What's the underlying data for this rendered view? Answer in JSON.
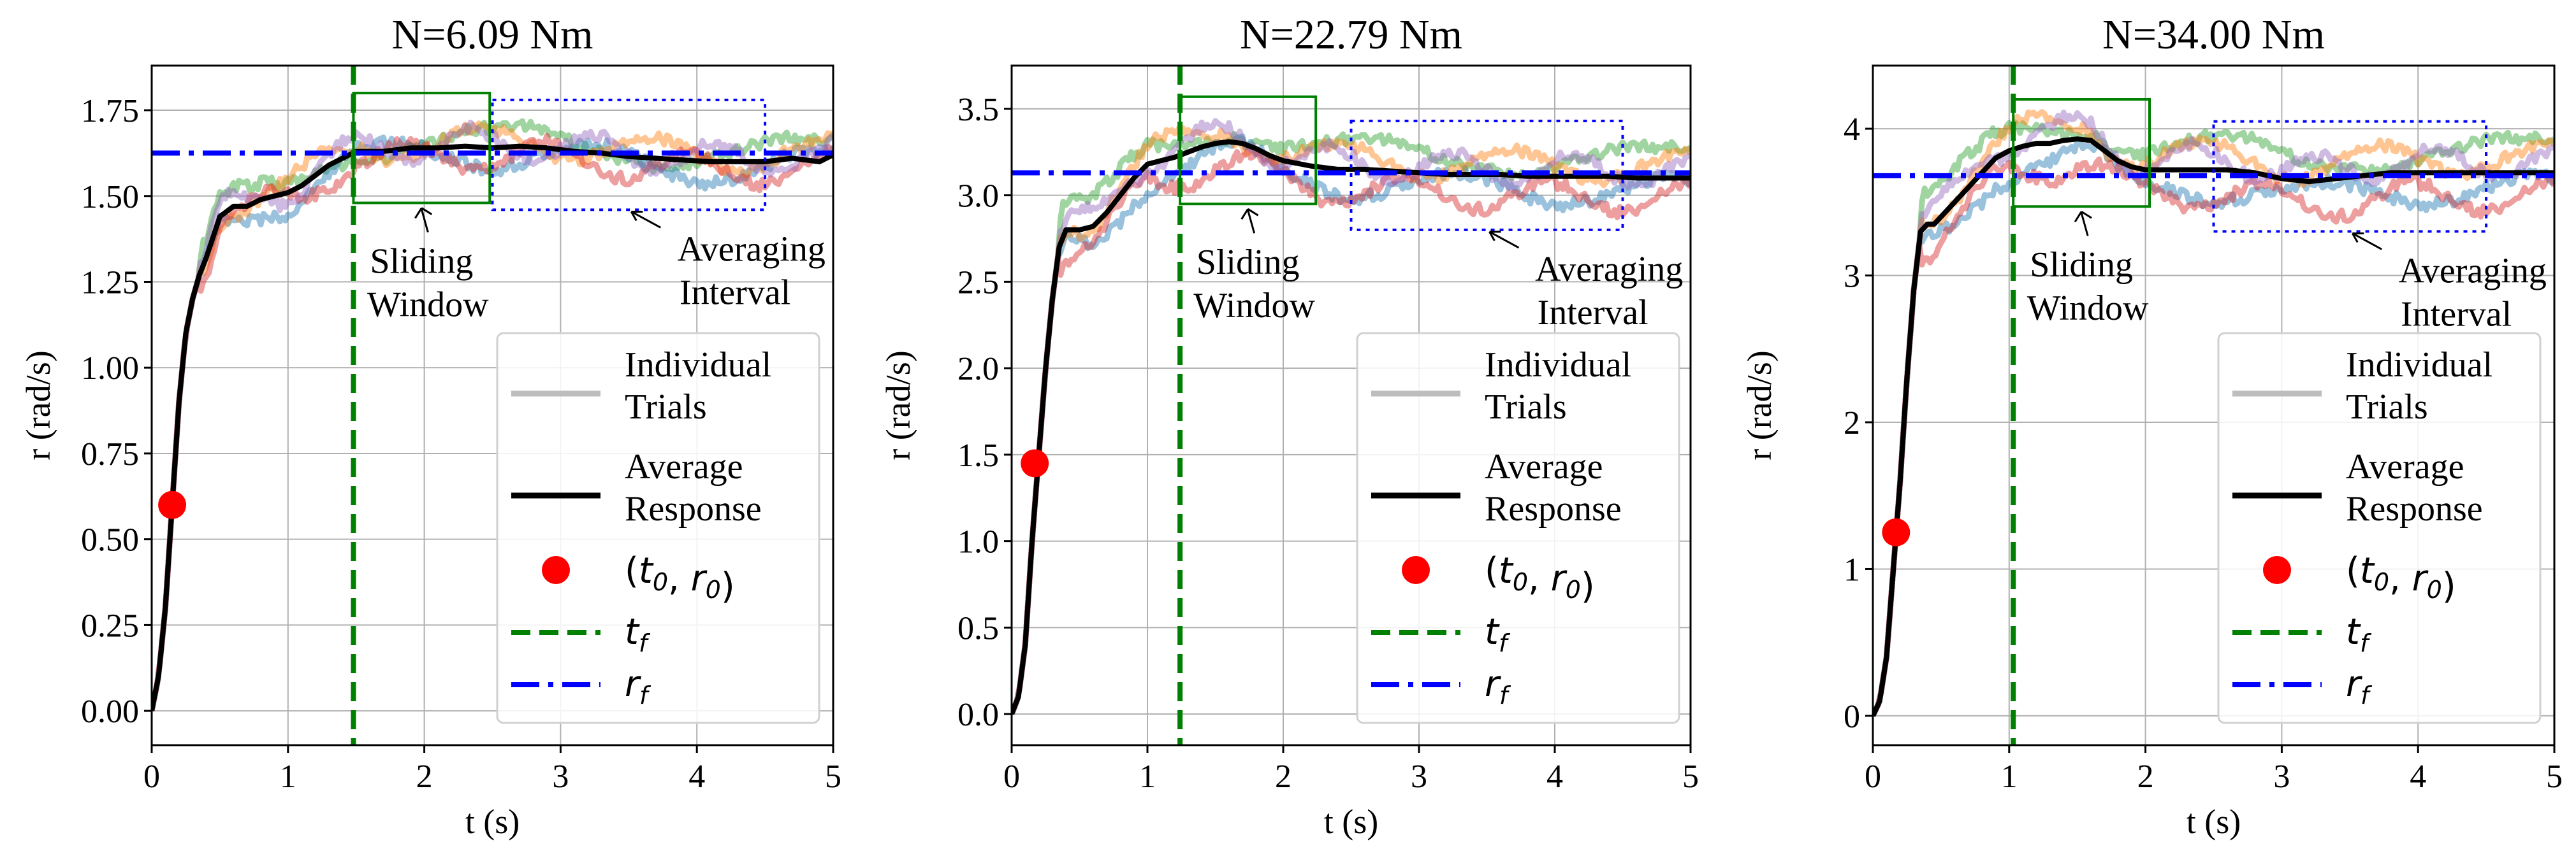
{
  "figure": {
    "colors": {
      "average": "#000000",
      "marker": "#ff0000",
      "tf": "#008000",
      "rf": "#0000ff",
      "grid": "#b0b0b0",
      "trials": [
        "#2ca02c",
        "#1f77b4",
        "#ff7f0e",
        "#d62728",
        "#9467bd"
      ]
    }
  },
  "chart_data": [
    {
      "type": "line",
      "title": "N=6.09 Nm",
      "xlabel": "t (s)",
      "ylabel": "r (rad/s)",
      "xlim": [
        0,
        5
      ],
      "ylim": [
        -0.1,
        1.88
      ],
      "xticks": [
        "0",
        "1",
        "2",
        "3",
        "4",
        "5"
      ],
      "yticks": [
        "0.00",
        "0.25",
        "0.50",
        "0.75",
        "1.00",
        "1.25",
        "1.50",
        "1.75"
      ],
      "ytick_values": [
        0,
        0.25,
        0.5,
        0.75,
        1.0,
        1.25,
        1.5,
        1.75
      ],
      "average": [
        [
          0,
          0
        ],
        [
          0.05,
          0.1
        ],
        [
          0.1,
          0.3
        ],
        [
          0.15,
          0.6
        ],
        [
          0.2,
          0.9
        ],
        [
          0.25,
          1.1
        ],
        [
          0.3,
          1.2
        ],
        [
          0.35,
          1.27
        ],
        [
          0.4,
          1.32
        ],
        [
          0.45,
          1.38
        ],
        [
          0.5,
          1.44
        ],
        [
          0.6,
          1.47
        ],
        [
          0.7,
          1.47
        ],
        [
          0.8,
          1.49
        ],
        [
          0.9,
          1.5
        ],
        [
          1.0,
          1.51
        ],
        [
          1.1,
          1.53
        ],
        [
          1.2,
          1.56
        ],
        [
          1.3,
          1.59
        ],
        [
          1.4,
          1.61
        ],
        [
          1.5,
          1.63
        ],
        [
          1.7,
          1.63
        ],
        [
          1.9,
          1.64
        ],
        [
          2.1,
          1.64
        ],
        [
          2.3,
          1.645
        ],
        [
          2.5,
          1.64
        ],
        [
          2.7,
          1.645
        ],
        [
          2.9,
          1.64
        ],
        [
          3.1,
          1.63
        ],
        [
          3.3,
          1.625
        ],
        [
          3.5,
          1.615
        ],
        [
          3.7,
          1.61
        ],
        [
          3.9,
          1.605
        ],
        [
          4.1,
          1.6
        ],
        [
          4.3,
          1.6
        ],
        [
          4.5,
          1.6
        ],
        [
          4.7,
          1.61
        ],
        [
          4.9,
          1.6
        ],
        [
          5.0,
          1.62
        ]
      ],
      "trial_offsets": [
        0.02,
        -0.02,
        0.015,
        -0.025,
        0.01
      ],
      "marker": {
        "t": 0.15,
        "r": 0.6
      },
      "tf": 1.48,
      "rf": 1.625,
      "sliding_window": {
        "t0": 1.48,
        "t1": 2.48,
        "r0": 1.48,
        "r1": 1.8
      },
      "averaging_interval": {
        "t0": 2.5,
        "t1": 4.5,
        "r0": 1.46,
        "r1": 1.78
      },
      "annotations": {
        "sliding": [
          "Sliding",
          "Window"
        ],
        "averaging": [
          "Averaging",
          "Interval"
        ]
      },
      "legend": {
        "position": "lower-right",
        "individual": [
          "Individual",
          "Trials"
        ],
        "average": [
          "Average",
          "Response"
        ],
        "marker": "(t0, r0)",
        "tf": "tf",
        "rf": "rf"
      }
    },
    {
      "type": "line",
      "title": "N=22.79 Nm",
      "xlabel": "t (s)",
      "ylabel": "r (rad/s)",
      "xlim": [
        0,
        5
      ],
      "ylim": [
        -0.18,
        3.75
      ],
      "xticks": [
        "0",
        "1",
        "2",
        "3",
        "4",
        "5"
      ],
      "yticks": [
        "0.0",
        "0.5",
        "1.0",
        "1.5",
        "2.0",
        "2.5",
        "3.0",
        "3.5"
      ],
      "ytick_values": [
        0,
        0.5,
        1.0,
        1.5,
        2.0,
        2.5,
        3.0,
        3.5
      ],
      "average": [
        [
          0,
          0
        ],
        [
          0.05,
          0.1
        ],
        [
          0.1,
          0.4
        ],
        [
          0.15,
          1.0
        ],
        [
          0.2,
          1.5
        ],
        [
          0.25,
          2.0
        ],
        [
          0.3,
          2.4
        ],
        [
          0.35,
          2.7
        ],
        [
          0.4,
          2.8
        ],
        [
          0.5,
          2.8
        ],
        [
          0.6,
          2.82
        ],
        [
          0.7,
          2.9
        ],
        [
          0.8,
          3.0
        ],
        [
          0.9,
          3.1
        ],
        [
          1.0,
          3.18
        ],
        [
          1.1,
          3.2
        ],
        [
          1.2,
          3.22
        ],
        [
          1.3,
          3.25
        ],
        [
          1.4,
          3.28
        ],
        [
          1.5,
          3.3
        ],
        [
          1.6,
          3.31
        ],
        [
          1.7,
          3.3
        ],
        [
          1.8,
          3.27
        ],
        [
          1.9,
          3.23
        ],
        [
          2.0,
          3.2
        ],
        [
          2.2,
          3.17
        ],
        [
          2.4,
          3.15
        ],
        [
          2.6,
          3.15
        ],
        [
          2.8,
          3.14
        ],
        [
          3.0,
          3.13
        ],
        [
          3.2,
          3.12
        ],
        [
          3.4,
          3.12
        ],
        [
          3.6,
          3.12
        ],
        [
          3.8,
          3.11
        ],
        [
          4.0,
          3.11
        ],
        [
          4.2,
          3.11
        ],
        [
          4.4,
          3.11
        ],
        [
          4.6,
          3.1
        ],
        [
          4.8,
          3.1
        ],
        [
          5.0,
          3.1
        ]
      ],
      "trial_offsets": [
        0.05,
        -0.04,
        0.03,
        -0.06,
        0.02
      ],
      "marker": {
        "t": 0.17,
        "r": 1.45
      },
      "tf": 1.24,
      "rf": 3.13,
      "sliding_window": {
        "t0": 1.24,
        "t1": 2.24,
        "r0": 2.95,
        "r1": 3.57
      },
      "averaging_interval": {
        "t0": 2.5,
        "t1": 4.5,
        "r0": 2.8,
        "r1": 3.43
      },
      "annotations": {
        "sliding": [
          "Sliding",
          "Window"
        ],
        "averaging": [
          "Averaging",
          "Interval"
        ]
      },
      "legend": {
        "position": "lower-right",
        "individual": [
          "Individual",
          "Trials"
        ],
        "average": [
          "Average",
          "Response"
        ],
        "marker": "(t0, r0)",
        "tf": "tf",
        "rf": "rf"
      }
    },
    {
      "type": "line",
      "title": "N=34.00 Nm",
      "xlabel": "t (s)",
      "ylabel": "r (rad/s)",
      "xlim": [
        0,
        5
      ],
      "ylim": [
        -0.2,
        4.43
      ],
      "xticks": [
        "0",
        "1",
        "2",
        "3",
        "4",
        "5"
      ],
      "yticks": [
        "0",
        "1",
        "2",
        "3",
        "4"
      ],
      "ytick_values": [
        0,
        1,
        2,
        3,
        4
      ],
      "average": [
        [
          0,
          0
        ],
        [
          0.05,
          0.1
        ],
        [
          0.1,
          0.4
        ],
        [
          0.15,
          1.0
        ],
        [
          0.2,
          1.6
        ],
        [
          0.25,
          2.3
        ],
        [
          0.3,
          2.9
        ],
        [
          0.35,
          3.3
        ],
        [
          0.4,
          3.35
        ],
        [
          0.45,
          3.35
        ],
        [
          0.5,
          3.4
        ],
        [
          0.6,
          3.5
        ],
        [
          0.7,
          3.6
        ],
        [
          0.8,
          3.7
        ],
        [
          0.9,
          3.8
        ],
        [
          1.0,
          3.85
        ],
        [
          1.1,
          3.88
        ],
        [
          1.2,
          3.9
        ],
        [
          1.3,
          3.9
        ],
        [
          1.4,
          3.92
        ],
        [
          1.5,
          3.93
        ],
        [
          1.6,
          3.92
        ],
        [
          1.7,
          3.85
        ],
        [
          1.8,
          3.78
        ],
        [
          1.9,
          3.74
        ],
        [
          2.0,
          3.72
        ],
        [
          2.2,
          3.72
        ],
        [
          2.4,
          3.72
        ],
        [
          2.6,
          3.72
        ],
        [
          2.8,
          3.7
        ],
        [
          3.0,
          3.66
        ],
        [
          3.2,
          3.64
        ],
        [
          3.4,
          3.66
        ],
        [
          3.6,
          3.68
        ],
        [
          3.8,
          3.7
        ],
        [
          4.0,
          3.7
        ],
        [
          4.2,
          3.7
        ],
        [
          4.4,
          3.7
        ],
        [
          4.6,
          3.7
        ],
        [
          4.8,
          3.7
        ],
        [
          5.0,
          3.7
        ]
      ],
      "trial_offsets": [
        0.06,
        -0.05,
        0.04,
        -0.07,
        0.03
      ],
      "marker": {
        "t": 0.17,
        "r": 1.25
      },
      "tf": 1.03,
      "rf": 3.68,
      "sliding_window": {
        "t0": 1.03,
        "t1": 2.03,
        "r0": 3.47,
        "r1": 4.2
      },
      "averaging_interval": {
        "t0": 2.5,
        "t1": 4.5,
        "r0": 3.3,
        "r1": 4.05
      },
      "annotations": {
        "sliding": [
          "Sliding",
          "Window"
        ],
        "averaging": [
          "Averaging",
          "Interval"
        ]
      },
      "legend": {
        "position": "lower-right",
        "individual": [
          "Individual",
          "Trials"
        ],
        "average": [
          "Average",
          "Response"
        ],
        "marker": "(t0, r0)",
        "tf": "tf",
        "rf": "rf"
      }
    }
  ]
}
